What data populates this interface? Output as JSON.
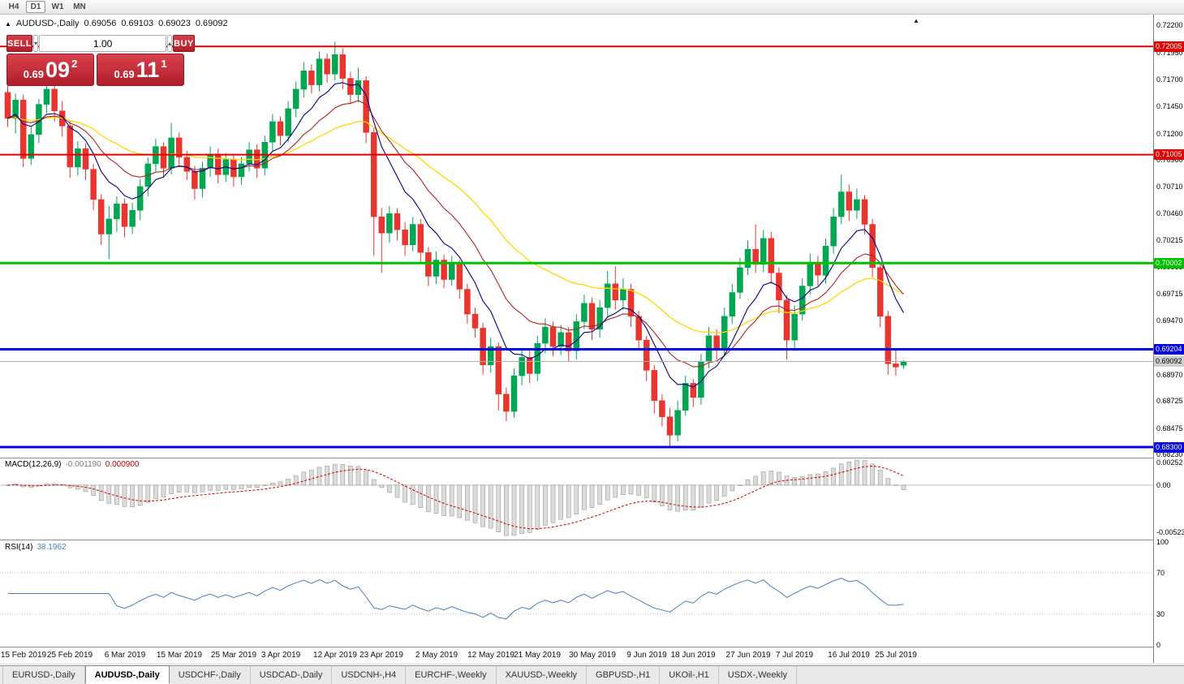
{
  "toolbar": {
    "timeframes": [
      {
        "label": "H4",
        "active": false
      },
      {
        "label": "D1",
        "active": true
      },
      {
        "label": "W1",
        "active": false
      },
      {
        "label": "MN",
        "active": false
      }
    ]
  },
  "header": {
    "symbol": "AUDUSD-,Daily",
    "open": "0.69056",
    "high": "0.69103",
    "low": "0.69023",
    "close": "0.69092"
  },
  "trade_panel": {
    "sell_label": "SELL",
    "buy_label": "BUY",
    "volume": "1.00",
    "sell_price": {
      "stem": "0.69",
      "big": "09",
      "sup": "2"
    },
    "buy_price": {
      "stem": "0.69",
      "big": "11",
      "sup": "1"
    },
    "icons": {
      "dropdown": "▾",
      "up": "▴"
    }
  },
  "price_axis": {
    "labels": [
      0.722,
      0.7195,
      0.717,
      0.7145,
      0.712,
      0.7096,
      0.7071,
      0.7046,
      0.70215,
      0.69965,
      0.69715,
      0.6947,
      0.6897,
      0.68725,
      0.68475,
      0.6823
    ],
    "badges": [
      {
        "text": "0.72005",
        "price": 0.72005,
        "bg": "#e00000",
        "fg": "#ffffff"
      },
      {
        "text": "0.71005",
        "price": 0.71005,
        "bg": "#e00000",
        "fg": "#ffffff"
      },
      {
        "text": "0.70002",
        "price": 0.70002,
        "bg": "#00c000",
        "fg": "#ffffff"
      },
      {
        "text": "0.69204",
        "price": 0.69204,
        "bg": "#0000e0",
        "fg": "#ffffff"
      },
      {
        "text": "0.68300",
        "price": 0.683,
        "bg": "#0000e0",
        "fg": "#ffffff"
      },
      {
        "text": "0.69092",
        "price": 0.69092,
        "bg": "#cfcfcf",
        "fg": "#000000"
      }
    ]
  },
  "hlines": [
    {
      "price": 0.72005,
      "color": "#e00000",
      "width": 2
    },
    {
      "price": 0.71005,
      "color": "#e00000",
      "width": 2
    },
    {
      "price": 0.70002,
      "color": "#00c000",
      "width": 3
    },
    {
      "price": 0.69204,
      "color": "#0000e0",
      "width": 3
    },
    {
      "price": 0.683,
      "color": "#0000e0",
      "width": 3
    },
    {
      "price": 0.69092,
      "color": "#b0b0b0",
      "width": 1
    }
  ],
  "chart_data": {
    "type": "candlestick",
    "symbol": "AUDUSD-,Daily",
    "candles": [
      [
        0.7158,
        0.7168,
        0.7126,
        0.7134
      ],
      [
        0.7134,
        0.7157,
        0.712,
        0.7151
      ],
      [
        0.7151,
        0.7156,
        0.7089,
        0.7097
      ],
      [
        0.7097,
        0.7126,
        0.7091,
        0.7119
      ],
      [
        0.7119,
        0.7152,
        0.7111,
        0.7147
      ],
      [
        0.7147,
        0.7168,
        0.7139,
        0.7161
      ],
      [
        0.7161,
        0.7166,
        0.7131,
        0.7141
      ],
      [
        0.7141,
        0.715,
        0.7117,
        0.7127
      ],
      [
        0.7127,
        0.7132,
        0.7079,
        0.7089
      ],
      [
        0.7089,
        0.7113,
        0.7081,
        0.7106
      ],
      [
        0.7106,
        0.7111,
        0.7077,
        0.7087
      ],
      [
        0.7087,
        0.7092,
        0.7049,
        0.7059
      ],
      [
        0.7059,
        0.7064,
        0.7017,
        0.7027
      ],
      [
        0.7027,
        0.7053,
        0.7004,
        0.7041
      ],
      [
        0.7041,
        0.7062,
        0.7029,
        0.7055
      ],
      [
        0.7055,
        0.706,
        0.7024,
        0.7034
      ],
      [
        0.7034,
        0.7056,
        0.7027,
        0.7049
      ],
      [
        0.7049,
        0.7078,
        0.704,
        0.7071
      ],
      [
        0.7071,
        0.7098,
        0.7062,
        0.7092
      ],
      [
        0.7092,
        0.7115,
        0.7085,
        0.7108
      ],
      [
        0.7108,
        0.7112,
        0.7079,
        0.7088
      ],
      [
        0.7088,
        0.713,
        0.7082,
        0.7116
      ],
      [
        0.7116,
        0.7121,
        0.7089,
        0.7098
      ],
      [
        0.7098,
        0.7104,
        0.7077,
        0.7085
      ],
      [
        0.7085,
        0.709,
        0.7059,
        0.7069
      ],
      [
        0.7069,
        0.7094,
        0.7061,
        0.7088
      ],
      [
        0.7088,
        0.7108,
        0.708,
        0.7101
      ],
      [
        0.7101,
        0.7106,
        0.7074,
        0.7082
      ],
      [
        0.7082,
        0.7102,
        0.7075,
        0.7096
      ],
      [
        0.7096,
        0.7101,
        0.7071,
        0.708
      ],
      [
        0.708,
        0.7098,
        0.7073,
        0.7092
      ],
      [
        0.7092,
        0.7112,
        0.7085,
        0.7105
      ],
      [
        0.7105,
        0.711,
        0.7079,
        0.7088
      ],
      [
        0.7088,
        0.7118,
        0.7081,
        0.7112
      ],
      [
        0.7112,
        0.7138,
        0.7104,
        0.7131
      ],
      [
        0.7131,
        0.7136,
        0.7109,
        0.7118
      ],
      [
        0.7118,
        0.715,
        0.7112,
        0.7143
      ],
      [
        0.7143,
        0.7168,
        0.7135,
        0.7161
      ],
      [
        0.7161,
        0.7186,
        0.7153,
        0.7178
      ],
      [
        0.7178,
        0.7184,
        0.7157,
        0.7165
      ],
      [
        0.7165,
        0.7196,
        0.7159,
        0.7189
      ],
      [
        0.7189,
        0.7194,
        0.7167,
        0.7175
      ],
      [
        0.7175,
        0.7205,
        0.7169,
        0.7193
      ],
      [
        0.7193,
        0.7199,
        0.7161,
        0.7171
      ],
      [
        0.7171,
        0.7177,
        0.7147,
        0.7156
      ],
      [
        0.7156,
        0.7181,
        0.7149,
        0.7169
      ],
      [
        0.7169,
        0.7173,
        0.7111,
        0.7121
      ],
      [
        0.7121,
        0.7126,
        0.7007,
        0.7043
      ],
      [
        0.7043,
        0.7051,
        0.6991,
        0.7028
      ],
      [
        0.7028,
        0.7053,
        0.7019,
        0.7046
      ],
      [
        0.7046,
        0.7051,
        0.7021,
        0.7031
      ],
      [
        0.7031,
        0.7038,
        0.7007,
        0.7017
      ],
      [
        0.7017,
        0.7043,
        0.7011,
        0.7036
      ],
      [
        0.7036,
        0.7041,
        0.7001,
        0.701
      ],
      [
        0.701,
        0.7015,
        0.6979,
        0.6988
      ],
      [
        0.6988,
        0.7011,
        0.6981,
        0.7003
      ],
      [
        0.7003,
        0.7008,
        0.6977,
        0.6985
      ],
      [
        0.6985,
        0.7007,
        0.6979,
        0.6999
      ],
      [
        0.6999,
        0.7003,
        0.6967,
        0.6976
      ],
      [
        0.6976,
        0.6981,
        0.6944,
        0.6953
      ],
      [
        0.6953,
        0.6959,
        0.6931,
        0.694
      ],
      [
        0.694,
        0.6945,
        0.6897,
        0.6906
      ],
      [
        0.6906,
        0.6931,
        0.6899,
        0.6923
      ],
      [
        0.6923,
        0.6927,
        0.6864,
        0.6879
      ],
      [
        0.6879,
        0.6885,
        0.6854,
        0.6863
      ],
      [
        0.6863,
        0.6903,
        0.6857,
        0.6896
      ],
      [
        0.6896,
        0.6921,
        0.6887,
        0.6913
      ],
      [
        0.6913,
        0.6919,
        0.6889,
        0.6898
      ],
      [
        0.6898,
        0.6933,
        0.6891,
        0.6926
      ],
      [
        0.6926,
        0.6949,
        0.6917,
        0.6941
      ],
      [
        0.6941,
        0.6946,
        0.6914,
        0.6923
      ],
      [
        0.6923,
        0.6943,
        0.6915,
        0.6936
      ],
      [
        0.6936,
        0.6941,
        0.6909,
        0.6919
      ],
      [
        0.6919,
        0.6953,
        0.6911,
        0.6946
      ],
      [
        0.6946,
        0.6971,
        0.6939,
        0.6963
      ],
      [
        0.6963,
        0.6968,
        0.6929,
        0.6939
      ],
      [
        0.6939,
        0.6966,
        0.6931,
        0.6959
      ],
      [
        0.6959,
        0.6993,
        0.6951,
        0.6981
      ],
      [
        0.6981,
        0.6997,
        0.6957,
        0.6966
      ],
      [
        0.6966,
        0.6986,
        0.6957,
        0.6976
      ],
      [
        0.6976,
        0.6981,
        0.6941,
        0.6951
      ],
      [
        0.6951,
        0.6956,
        0.6919,
        0.6929
      ],
      [
        0.6929,
        0.6933,
        0.6891,
        0.6901
      ],
      [
        0.6901,
        0.6906,
        0.6861,
        0.6873
      ],
      [
        0.6873,
        0.6879,
        0.6849,
        0.6858
      ],
      [
        0.6858,
        0.6866,
        0.683,
        0.6841
      ],
      [
        0.6841,
        0.6873,
        0.6835,
        0.6864
      ],
      [
        0.6864,
        0.6896,
        0.6859,
        0.6889
      ],
      [
        0.6889,
        0.6893,
        0.6867,
        0.6876
      ],
      [
        0.6876,
        0.6916,
        0.6869,
        0.6909
      ],
      [
        0.6909,
        0.6941,
        0.6903,
        0.6933
      ],
      [
        0.6933,
        0.6939,
        0.6911,
        0.6921
      ],
      [
        0.6921,
        0.6959,
        0.6914,
        0.6951
      ],
      [
        0.6951,
        0.6981,
        0.6944,
        0.6973
      ],
      [
        0.6973,
        0.7005,
        0.6967,
        0.6996
      ],
      [
        0.6996,
        0.7021,
        0.6989,
        0.7013
      ],
      [
        0.7013,
        0.7036,
        0.6991,
        0.6999
      ],
      [
        0.6999,
        0.7031,
        0.6992,
        0.7023
      ],
      [
        0.7023,
        0.7029,
        0.6981,
        0.6991
      ],
      [
        0.6991,
        0.6996,
        0.6954,
        0.6966
      ],
      [
        0.6966,
        0.6971,
        0.6911,
        0.6929
      ],
      [
        0.6929,
        0.6961,
        0.6919,
        0.6953
      ],
      [
        0.6953,
        0.6986,
        0.6947,
        0.6979
      ],
      [
        0.6979,
        0.7009,
        0.6971,
        0.7001
      ],
      [
        0.7001,
        0.7007,
        0.6979,
        0.6989
      ],
      [
        0.6989,
        0.7023,
        0.6981,
        0.7016
      ],
      [
        0.7016,
        0.7051,
        0.7009,
        0.7043
      ],
      [
        0.7043,
        0.7082,
        0.7036,
        0.7066
      ],
      [
        0.7066,
        0.7073,
        0.7039,
        0.7049
      ],
      [
        0.7049,
        0.7069,
        0.7041,
        0.7059
      ],
      [
        0.7059,
        0.7063,
        0.7027,
        0.7036
      ],
      [
        0.7036,
        0.7041,
        0.6987,
        0.6996
      ],
      [
        0.6996,
        0.7001,
        0.6941,
        0.6951
      ],
      [
        0.6951,
        0.6956,
        0.6897,
        0.6907
      ],
      [
        0.6907,
        0.6921,
        0.6896,
        0.6904
      ],
      [
        0.69056,
        0.69103,
        0.69023,
        0.69092
      ]
    ],
    "date_labels": [
      {
        "label": "15 Feb 2019",
        "i": 2
      },
      {
        "label": "25 Feb 2019",
        "i": 8
      },
      {
        "label": "6 Mar 2019",
        "i": 15
      },
      {
        "label": "15 Mar 2019",
        "i": 22
      },
      {
        "label": "25 Mar 2019",
        "i": 29
      },
      {
        "label": "3 Apr 2019",
        "i": 35
      },
      {
        "label": "12 Apr 2019",
        "i": 42
      },
      {
        "label": "23 Apr 2019",
        "i": 48
      },
      {
        "label": "2 May 2019",
        "i": 55
      },
      {
        "label": "12 May 2019",
        "i": 62
      },
      {
        "label": "21 May 2019",
        "i": 68
      },
      {
        "label": "30 May 2019",
        "i": 75
      },
      {
        "label": "9 Jun 2019",
        "i": 82
      },
      {
        "label": "18 Jun 2019",
        "i": 88
      },
      {
        "label": "27 Jun 2019",
        "i": 95
      },
      {
        "label": "7 Jul 2019",
        "i": 101
      },
      {
        "label": "16 Jul 2019",
        "i": 108
      },
      {
        "label": "25 Jul 2019",
        "i": 114
      }
    ]
  },
  "macd": {
    "name": "MACD(12,26,9)",
    "main": "-0.001190",
    "signal": "0.000900",
    "axis": [
      {
        "text": "0.00252",
        "v": 0.00252
      },
      {
        "text": "0.00",
        "v": 0
      },
      {
        "text": "-0.00523",
        "v": -0.00523
      }
    ]
  },
  "rsi": {
    "name": "RSI(14)",
    "value": "38.1962",
    "axis": [
      {
        "text": "100",
        "v": 100
      },
      {
        "text": "70",
        "v": 70
      },
      {
        "text": "30",
        "v": 30
      },
      {
        "text": "0",
        "v": 0
      }
    ],
    "levels": [
      70,
      30
    ]
  },
  "tabs": [
    {
      "label": "EURUSD-,Daily",
      "active": false
    },
    {
      "label": "AUDUSD-,Daily",
      "active": true
    },
    {
      "label": "USDCHF-,Daily",
      "active": false
    },
    {
      "label": "USDCAD-,Daily",
      "active": false
    },
    {
      "label": "USDCNH-,H4",
      "active": false
    },
    {
      "label": "EURCHF-,Weekly",
      "active": false
    },
    {
      "label": "XAUUSD-,Weekly",
      "active": false
    },
    {
      "label": "GBPUSD-,H1",
      "active": false
    },
    {
      "label": "UKOil-,H1",
      "active": false
    },
    {
      "label": "USDX-,Weekly",
      "active": false
    }
  ],
  "colors": {
    "candle_up": "#00a651",
    "candle_down": "#e8352e",
    "ma_fast": "#00008b",
    "ma_mid": "#b22222",
    "ma_slow": "#ffd700",
    "macd_hist": "#dcdcdc",
    "macd_hist_border": "#9a9a9a",
    "macd_signal": "#cc0000",
    "rsi_line": "#4a7ebb"
  }
}
